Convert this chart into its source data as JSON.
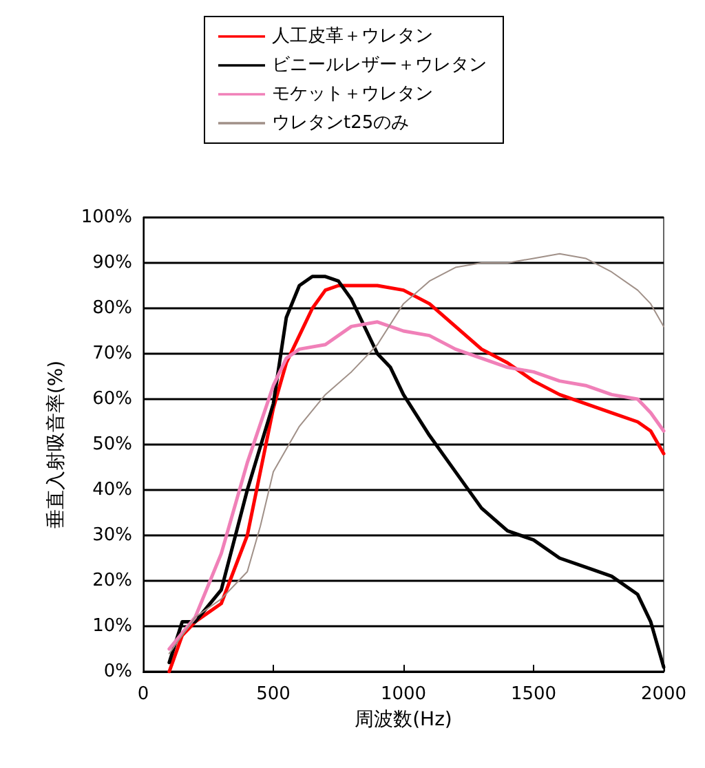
{
  "chart_data": {
    "type": "line",
    "xlabel": "周波数(Hz)",
    "ylabel": "垂直入射吸音率(%)",
    "xlim": [
      0,
      2000
    ],
    "xticks": [
      0,
      500,
      1000,
      1500,
      2000
    ],
    "ylim": [
      0,
      100
    ],
    "yticks": [
      {
        "value": 0,
        "label": "0%"
      },
      {
        "value": 10,
        "label": "10%"
      },
      {
        "value": 20,
        "label": "20%"
      },
      {
        "value": 30,
        "label": "30%"
      },
      {
        "value": 40,
        "label": "40%"
      },
      {
        "value": 50,
        "label": "50%"
      },
      {
        "value": 60,
        "label": "60%"
      },
      {
        "value": 70,
        "label": "70%"
      },
      {
        "value": 80,
        "label": "80%"
      },
      {
        "value": 90,
        "label": "90%"
      },
      {
        "value": 100,
        "label": "100%"
      }
    ],
    "grid": "y",
    "legend": "top",
    "marker": "none",
    "line_style": "solid",
    "series": [
      {
        "name": "人工皮革＋ウレタン",
        "color": "#ff0000",
        "x": [
          100,
          150,
          200,
          300,
          400,
          500,
          550,
          600,
          650,
          700,
          750,
          800,
          900,
          1000,
          1100,
          1200,
          1300,
          1400,
          1500,
          1600,
          1700,
          1800,
          1900,
          1950,
          2000
        ],
        "values": [
          0,
          8,
          11,
          15,
          30,
          58,
          68,
          74,
          80,
          84,
          85,
          85,
          85,
          84,
          81,
          76,
          71,
          68,
          64,
          61,
          59,
          57,
          55,
          53,
          48
        ]
      },
      {
        "name": "ビニールレザー＋ウレタン",
        "color": "#000000",
        "x": [
          100,
          150,
          200,
          300,
          400,
          500,
          550,
          600,
          650,
          700,
          750,
          800,
          850,
          900,
          950,
          1000,
          1100,
          1200,
          1300,
          1400,
          1500,
          1600,
          1700,
          1800,
          1900,
          1950,
          2000
        ],
        "values": [
          2,
          11,
          11,
          18,
          40,
          59,
          78,
          85,
          87,
          87,
          86,
          82,
          76,
          70,
          67,
          61,
          52,
          44,
          36,
          31,
          29,
          25,
          23,
          21,
          17,
          11,
          1
        ]
      },
      {
        "name": "モケット＋ウレタン",
        "color": "#f080b8",
        "x": [
          100,
          200,
          300,
          400,
          500,
          550,
          600,
          700,
          800,
          900,
          1000,
          1100,
          1200,
          1300,
          1400,
          1500,
          1600,
          1700,
          1800,
          1900,
          1950,
          2000
        ],
        "values": [
          5,
          12,
          26,
          46,
          63,
          69,
          71,
          72,
          76,
          77,
          75,
          74,
          71,
          69,
          67,
          66,
          64,
          63,
          61,
          60,
          57,
          53
        ]
      },
      {
        "name": "ウレタンt25のみ",
        "color": "#a09088",
        "x": [
          100,
          200,
          300,
          400,
          450,
          500,
          600,
          700,
          800,
          850,
          900,
          1000,
          1100,
          1200,
          1300,
          1400,
          1500,
          1600,
          1700,
          1800,
          1900,
          1950,
          2000
        ],
        "values": [
          4,
          12,
          16,
          22,
          32,
          44,
          54,
          61,
          66,
          69,
          72,
          81,
          86,
          89,
          90,
          90,
          91,
          92,
          91,
          88,
          84,
          81,
          76
        ]
      }
    ]
  }
}
